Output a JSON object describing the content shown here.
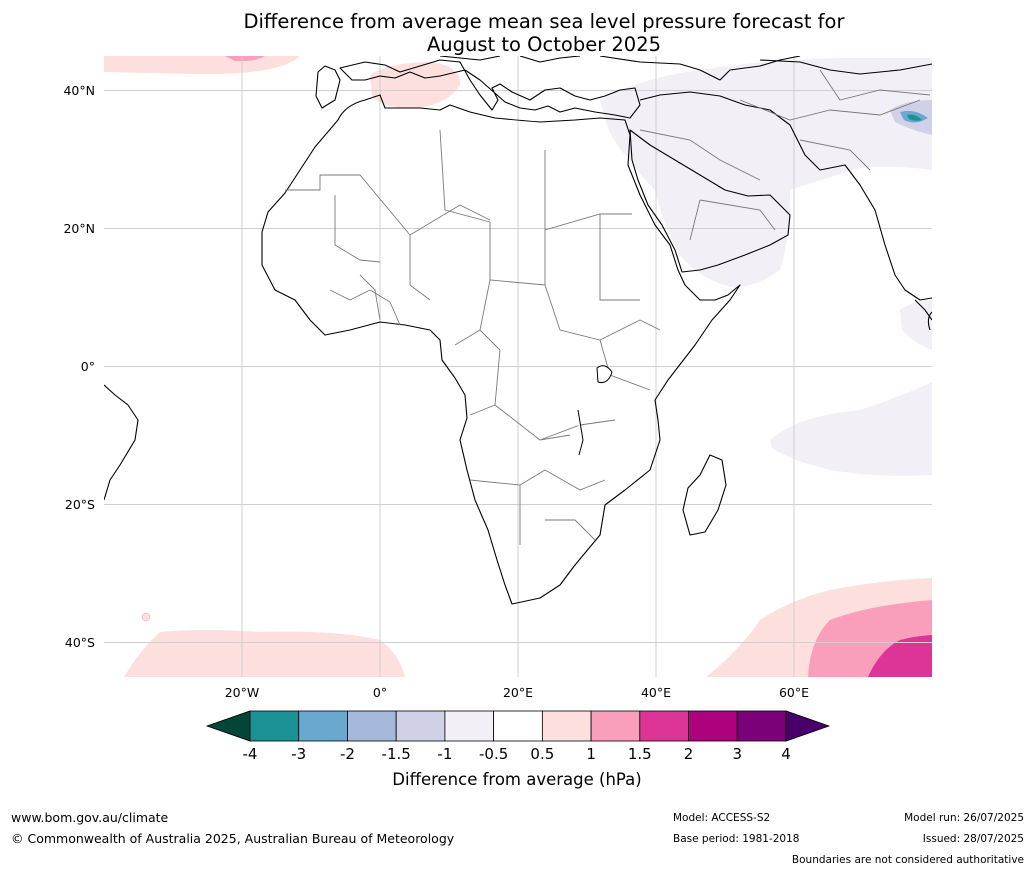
{
  "title": {
    "line1": "Difference from average mean sea level pressure forecast for",
    "line2": "August to October 2025"
  },
  "map": {
    "lat_ticks": [
      {
        "value": 40,
        "label": "40°N"
      },
      {
        "value": 20,
        "label": "20°N"
      },
      {
        "value": 0,
        "label": "0°"
      },
      {
        "value": -20,
        "label": "20°S"
      },
      {
        "value": -40,
        "label": "40°S"
      }
    ],
    "lon_ticks": [
      {
        "value": -20,
        "label": "20°W"
      },
      {
        "value": 0,
        "label": "0°"
      },
      {
        "value": 20,
        "label": "20°E"
      },
      {
        "value": 40,
        "label": "40°E"
      },
      {
        "value": 60,
        "label": "60°E"
      }
    ],
    "lon_range": [
      -40,
      80
    ],
    "lat_range": [
      -45,
      45
    ]
  },
  "colorbar": {
    "title": "Difference from average (hPa)",
    "labels": [
      "-4",
      "-3",
      "-2",
      "-1.5",
      "-1",
      "-0.5",
      "0.5",
      "1",
      "1.5",
      "2",
      "3",
      "4"
    ],
    "colors": [
      "#1b9196",
      "#6aa9cf",
      "#a6b9da",
      "#d0d1e6",
      "#f2eff6",
      "#ffffff",
      "#fddfdd",
      "#f99fbb",
      "#dd3597",
      "#ae017e",
      "#7a0177"
    ],
    "extend_low_color": "#014636",
    "extend_high_color": "#49006a"
  },
  "footer": {
    "url": "www.bom.gov.au/climate",
    "copyright": "© Commonwealth of Australia 2025, Australian Bureau of Meteorology",
    "model": "Model: ACCESS-S2",
    "base_period": "Base period: 1981-2018",
    "model_run": "Model run: 26/07/2025",
    "issued": "Issued: 28/07/2025",
    "disclaimer": "Boundaries are not considered authoritative"
  }
}
